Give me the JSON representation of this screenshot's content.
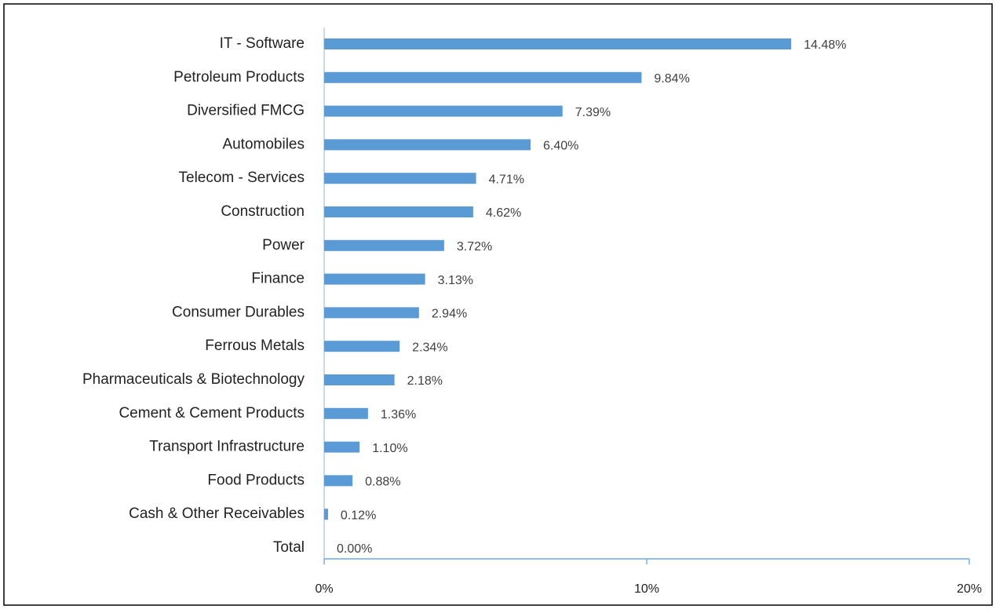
{
  "chart_data": {
    "type": "bar",
    "orientation": "horizontal",
    "color": "#5b9bd5",
    "categories": [
      "IT - Software",
      "Petroleum Products",
      "Diversified FMCG",
      "Automobiles",
      "Telecom - Services",
      "Construction",
      "Power",
      "Finance",
      "Consumer Durables",
      "Ferrous Metals",
      "Pharmaceuticals & Biotechnology",
      "Cement & Cement Products",
      "Transport Infrastructure",
      "Food Products",
      "Cash & Other Receivables",
      "Total"
    ],
    "values": [
      14.48,
      9.84,
      7.39,
      6.4,
      4.71,
      4.62,
      3.72,
      3.13,
      2.94,
      2.34,
      2.18,
      1.36,
      1.1,
      0.88,
      0.12,
      0.0
    ],
    "value_labels": [
      "14.48%",
      "9.84%",
      "7.39%",
      "6.40%",
      "4.71%",
      "4.62%",
      "3.72%",
      "3.13%",
      "2.94%",
      "2.34%",
      "2.18%",
      "1.36%",
      "1.10%",
      "0.88%",
      "0.12%",
      "0.00%"
    ],
    "xlim": [
      0,
      20
    ],
    "xticks": [
      {
        "value": 0,
        "label": "0%"
      },
      {
        "value": 10,
        "label": "10%"
      },
      {
        "value": 20,
        "label": "20%"
      }
    ]
  }
}
